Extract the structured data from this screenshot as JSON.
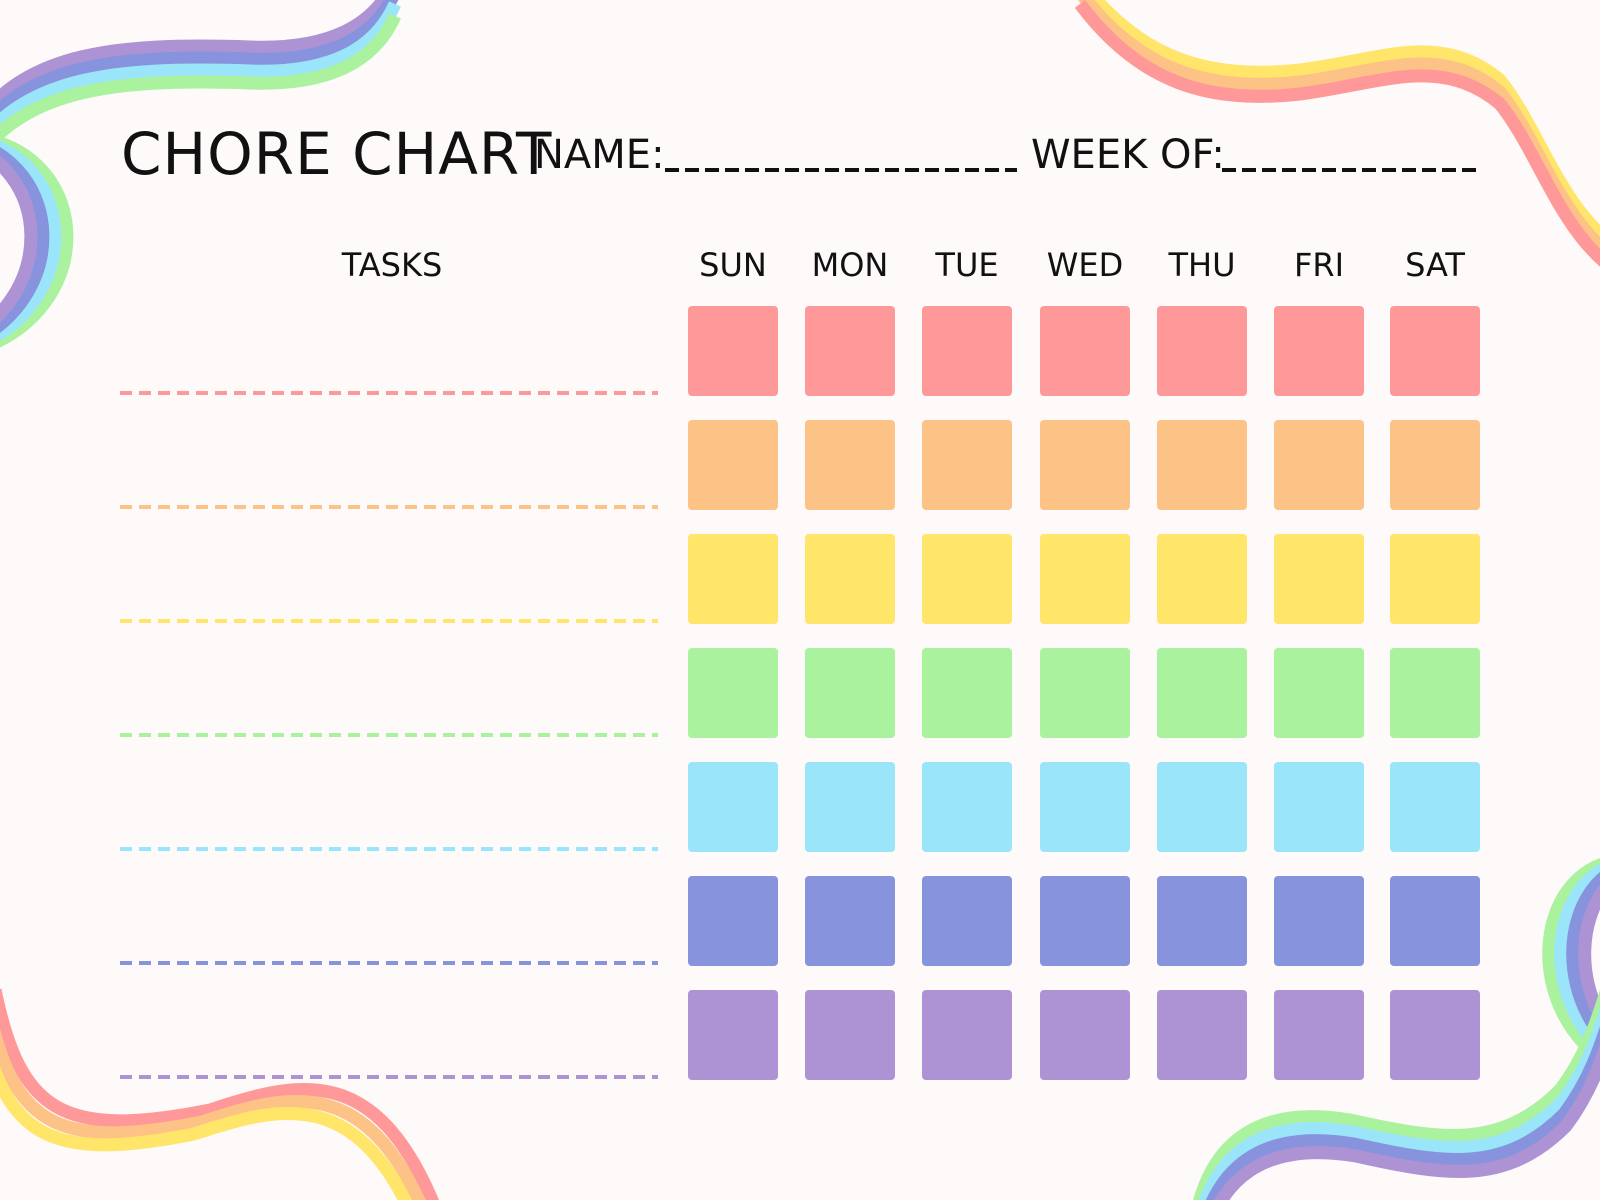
{
  "header": {
    "title": "CHORE CHART",
    "name_label": "NAME:",
    "week_label": "WEEK OF:"
  },
  "tasks_header": "TASKS",
  "days": [
    "SUN",
    "MON",
    "TUE",
    "WED",
    "THU",
    "FRI",
    "SAT"
  ],
  "row_colors": [
    "#ff9999",
    "#fdc286",
    "#ffe66b",
    "#abf29e",
    "#9ae5fa",
    "#8794dd",
    "#ad93d3"
  ],
  "background": "#fdfaf9"
}
